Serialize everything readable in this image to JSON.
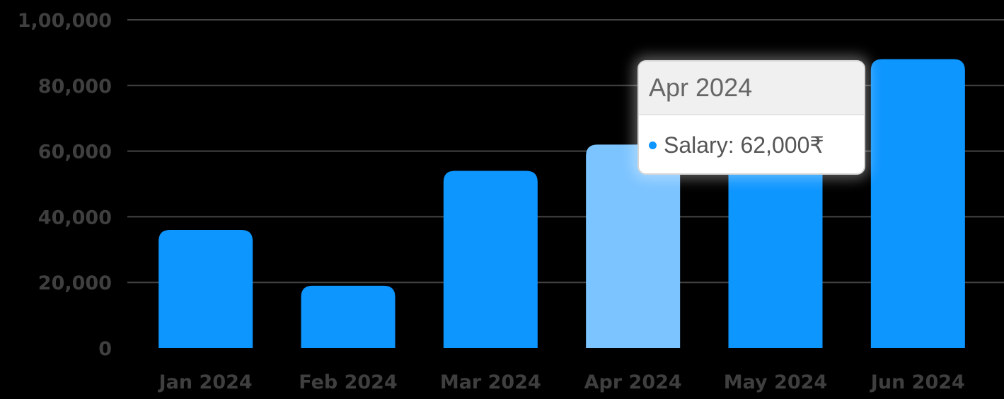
{
  "chart_data": {
    "type": "bar",
    "categories": [
      "Jan 2024",
      "Feb 2024",
      "Mar 2024",
      "Apr 2024",
      "May 2024",
      "Jun 2024"
    ],
    "series": [
      {
        "name": "Salary",
        "values": [
          36000,
          19000,
          54000,
          62000,
          59000,
          88000
        ]
      }
    ],
    "y_ticks": [
      "0",
      "20,000",
      "40,000",
      "60,000",
      "80,000",
      "1,00,000"
    ],
    "ylim": [
      0,
      100000
    ],
    "grid": true,
    "highlighted_index": 3
  },
  "tooltip": {
    "title": "Apr 2024",
    "series_label": "Salary",
    "value_text": "62,000₹"
  },
  "colors": {
    "bar": "#0e96ff",
    "bar_highlight": "#7cc4ff",
    "background": "#000000"
  }
}
